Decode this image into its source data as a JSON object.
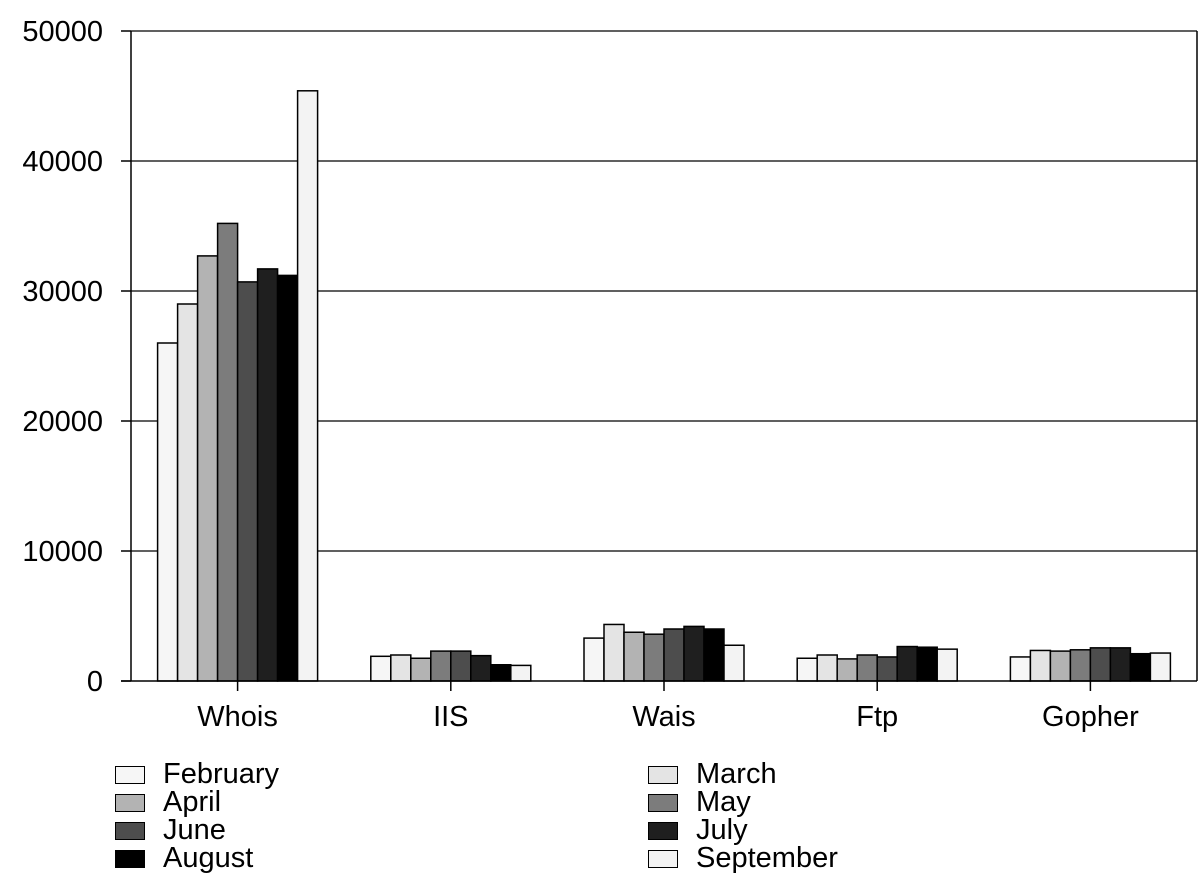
{
  "chart_data": {
    "type": "bar",
    "categories": [
      "Whois",
      "IIS",
      "Wais",
      "Ftp",
      "Gopher"
    ],
    "ylim": [
      0,
      50000
    ],
    "yticks": [
      "0",
      "10000",
      "20000",
      "30000",
      "40000",
      "50000"
    ],
    "grid": true,
    "legend_position": "bottom",
    "series": [
      {
        "name": "February",
        "color": "#f6f6f6",
        "values": [
          26000,
          1900,
          3300,
          1750,
          1850
        ]
      },
      {
        "name": "March",
        "color": "#e4e4e4",
        "values": [
          29000,
          2000,
          4350,
          2000,
          2350
        ]
      },
      {
        "name": "April",
        "color": "#b3b3b3",
        "values": [
          32700,
          1750,
          3750,
          1700,
          2300
        ]
      },
      {
        "name": "May",
        "color": "#7c7c7c",
        "values": [
          35200,
          2300,
          3600,
          2000,
          2400
        ]
      },
      {
        "name": "June",
        "color": "#4d4d4d",
        "values": [
          30700,
          2300,
          4000,
          1850,
          2550
        ]
      },
      {
        "name": "July",
        "color": "#1f1f1f",
        "values": [
          31700,
          1950,
          4200,
          2650,
          2550
        ]
      },
      {
        "name": "August",
        "color": "#000000",
        "values": [
          31200,
          1250,
          4000,
          2600,
          2100
        ]
      },
      {
        "name": "September",
        "color": "#f3f3f3",
        "values": [
          45400,
          1200,
          2750,
          2450,
          2150
        ]
      }
    ]
  }
}
